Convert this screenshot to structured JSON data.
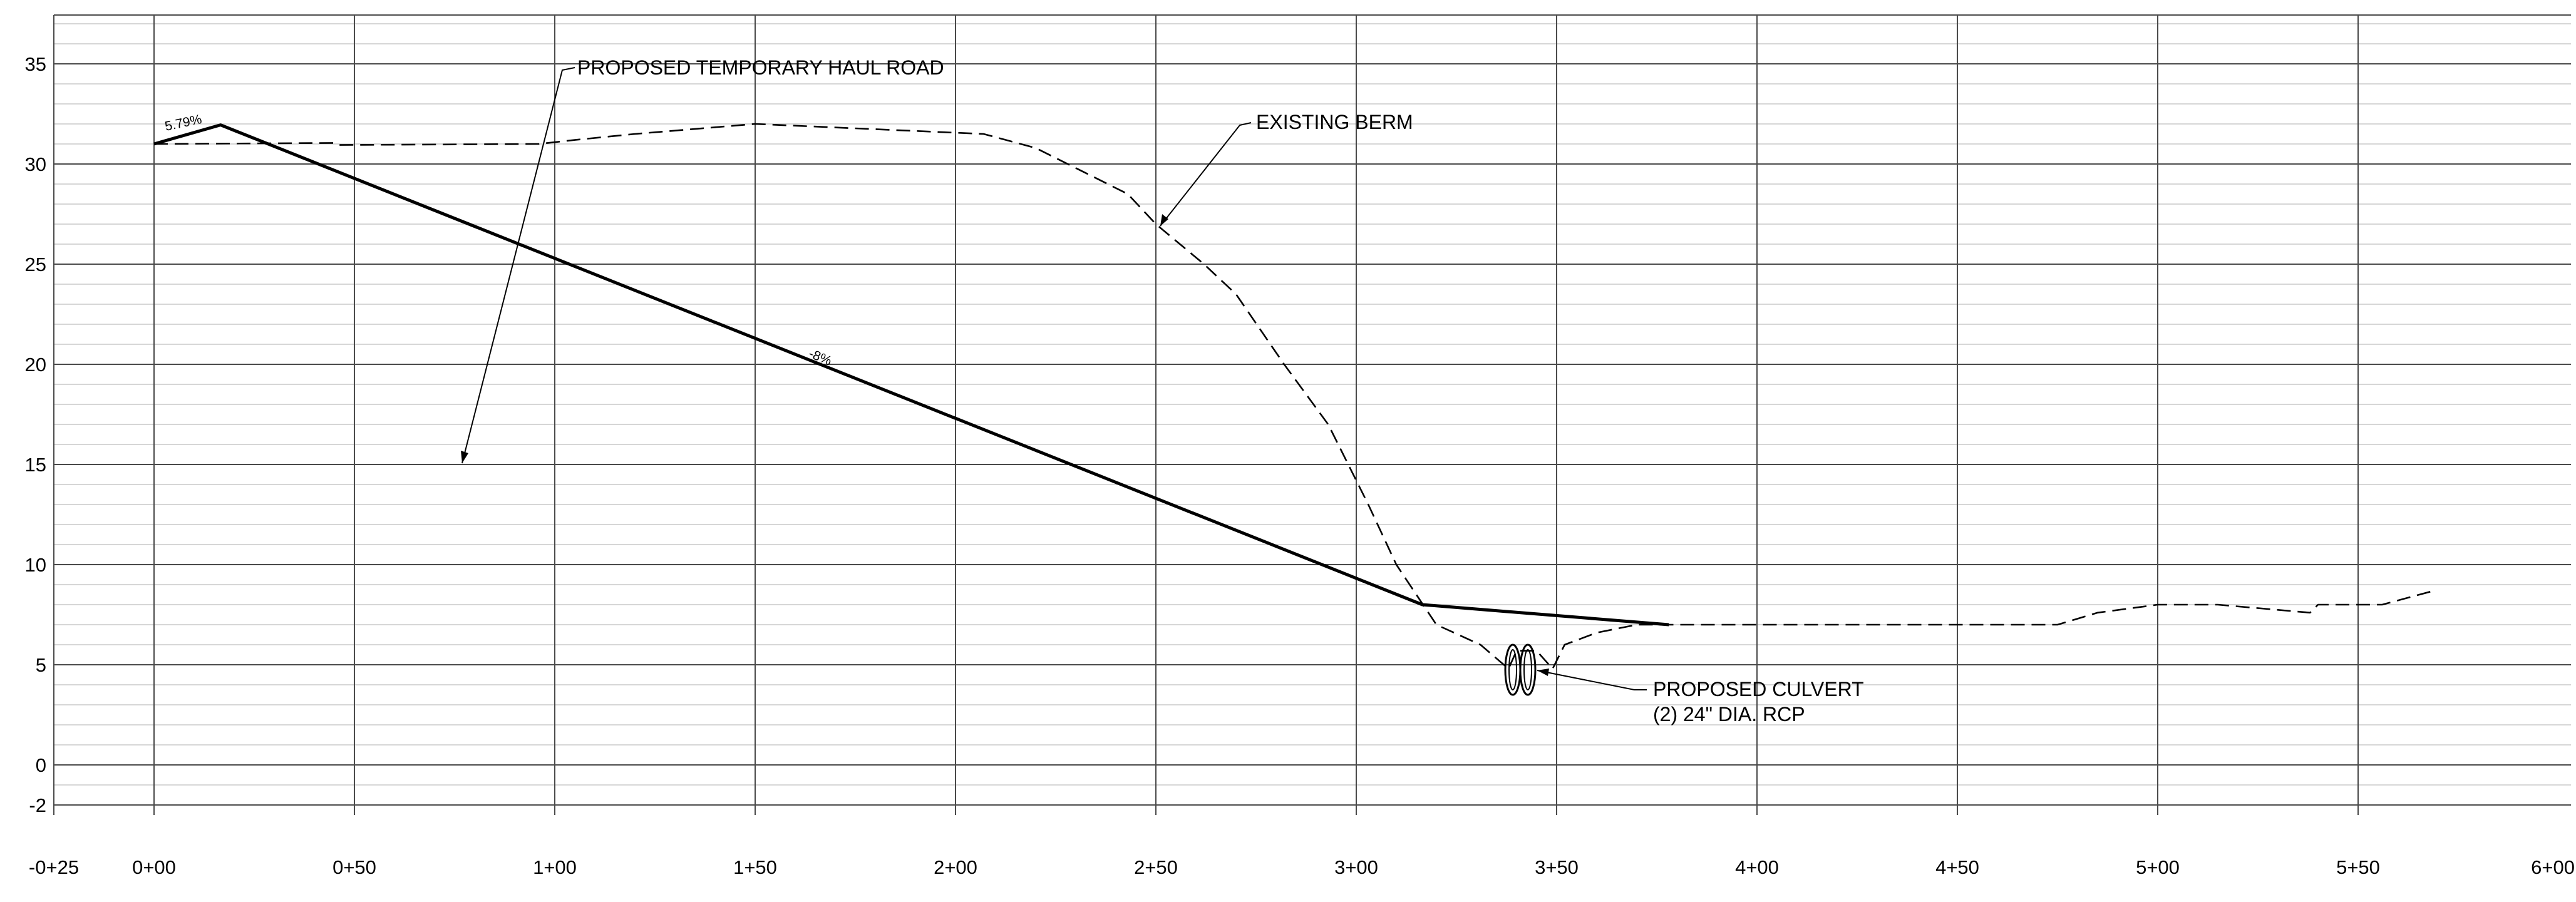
{
  "chart_data": {
    "type": "line",
    "title": "",
    "xlabel": "",
    "ylabel": "",
    "x_ticks": [
      {
        "sta": -25,
        "label": "-0+25"
      },
      {
        "sta": 0,
        "label": "0+00"
      },
      {
        "sta": 50,
        "label": "0+50"
      },
      {
        "sta": 100,
        "label": "1+00"
      },
      {
        "sta": 150,
        "label": "1+50"
      },
      {
        "sta": 200,
        "label": "2+00"
      },
      {
        "sta": 250,
        "label": "2+50"
      },
      {
        "sta": 300,
        "label": "3+00"
      },
      {
        "sta": 350,
        "label": "3+50"
      },
      {
        "sta": 400,
        "label": "4+00"
      },
      {
        "sta": 450,
        "label": "4+50"
      },
      {
        "sta": 500,
        "label": "5+00"
      },
      {
        "sta": 550,
        "label": "5+50"
      },
      {
        "sta": 600,
        "label": "6+00"
      }
    ],
    "y_ticks": [
      {
        "elev": -2,
        "label": "-2"
      },
      {
        "elev": 0,
        "label": "0"
      },
      {
        "elev": 5,
        "label": "5"
      },
      {
        "elev": 10,
        "label": "10"
      },
      {
        "elev": 15,
        "label": "15"
      },
      {
        "elev": 20,
        "label": "20"
      },
      {
        "elev": 25,
        "label": "25"
      },
      {
        "elev": 30,
        "label": "30"
      },
      {
        "elev": 35,
        "label": "35"
      }
    ],
    "xlim": [
      -25,
      600
    ],
    "ylim": [
      -2,
      37.5
    ],
    "grid": {
      "major_x_interval": 50,
      "minor_y_interval": 1,
      "major_y_interval": 5
    },
    "series": [
      {
        "name": "PROPOSED TEMPORARY HAUL ROAD",
        "style": "solid-heavy",
        "points": [
          [
            0,
            31
          ],
          [
            16.6,
            31.95
          ],
          [
            316.5,
            8
          ],
          [
            378,
            7
          ]
        ]
      },
      {
        "name": "EXISTING BERM",
        "style": "dashed",
        "points": [
          [
            0,
            31
          ],
          [
            45,
            31.05
          ],
          [
            46,
            30.95
          ],
          [
            96,
            31
          ],
          [
            105,
            31.2
          ],
          [
            120,
            31.5
          ],
          [
            150,
            32
          ],
          [
            207,
            31.5
          ],
          [
            220,
            30.8
          ],
          [
            230,
            29.8
          ],
          [
            243,
            28.5
          ],
          [
            250,
            27
          ],
          [
            262,
            25
          ],
          [
            270,
            23.5
          ],
          [
            282,
            20
          ],
          [
            293,
            17
          ],
          [
            303,
            13
          ],
          [
            310,
            10
          ],
          [
            320,
            7
          ],
          [
            331,
            6
          ],
          [
            338,
            4.8
          ],
          [
            340,
            5.7
          ],
          [
            345,
            5.7
          ],
          [
            349,
            4.8
          ],
          [
            352,
            6
          ],
          [
            360,
            6.6
          ],
          [
            370,
            7
          ],
          [
            475,
            7
          ],
          [
            485,
            7.6
          ],
          [
            500,
            8
          ],
          [
            515,
            8
          ],
          [
            538,
            7.6
          ],
          [
            540,
            8
          ],
          [
            556,
            8
          ],
          [
            569,
            8.7
          ]
        ]
      }
    ],
    "grade_labels": [
      "5.79%",
      "-8%"
    ],
    "annotations": [
      {
        "text": "PROPOSED TEMPORARY HAUL ROAD"
      },
      {
        "text": "EXISTING BERM"
      },
      {
        "lines": [
          "PROPOSED CULVERT",
          "(2) 24\" DIA. RCP"
        ]
      }
    ]
  }
}
